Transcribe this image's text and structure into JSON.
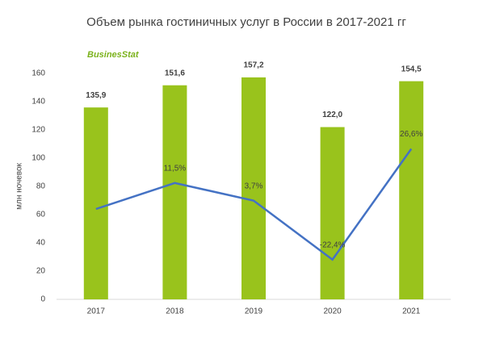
{
  "chart_data": {
    "type": "bar",
    "title": "Объем рынка гостиничных услуг в России  в 2017-2021 гг",
    "logo": "BusinesStat",
    "y_label": "млн ночевок",
    "categories": [
      "2017",
      "2018",
      "2019",
      "2020",
      "2021"
    ],
    "series": [
      {
        "type": "bar",
        "color": "#99c31c",
        "values": [
          135.9,
          151.6,
          157.2,
          122.0,
          154.5
        ],
        "value_labels": [
          "135,9",
          "151,6",
          "157,2",
          "122,0",
          "154,5"
        ]
      },
      {
        "type": "line",
        "axis": "y2",
        "color": "#4472c4",
        "values": [
          0,
          11.5,
          3.7,
          -22.4,
          26.6
        ],
        "value_labels": [
          null,
          "11,5%",
          "3,7%",
          "-22,4%",
          "26,6%"
        ]
      }
    ],
    "ylim": [
      0,
      160
    ],
    "yticks": [
      0,
      20,
      40,
      60,
      80,
      100,
      120,
      140,
      160
    ],
    "y2lim": [
      -40,
      60
    ],
    "grid": false
  }
}
